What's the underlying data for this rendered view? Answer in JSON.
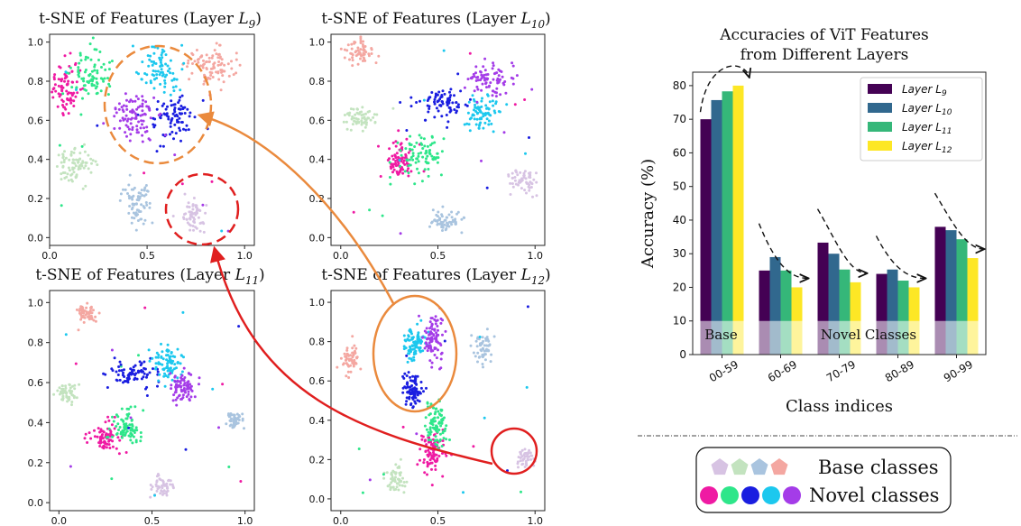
{
  "chart_data": [
    {
      "type": "scatter",
      "panel": "layer9",
      "title": "t-SNE of Features (Layer L9)",
      "title_text": "t-SNE of Features (Layer ",
      "title_var": "L",
      "title_sub": "9",
      "title_close": ")",
      "xlim": [
        0,
        1.05
      ],
      "ylim": [
        -0.04,
        1.04
      ],
      "xticks": [
        "0.0",
        "0.5",
        "1.0"
      ],
      "yticks": [
        "0.0",
        "0.2",
        "0.4",
        "0.6",
        "0.8",
        "1.0"
      ],
      "clusters": [
        {
          "cls": "base1",
          "x": 0.82,
          "y": 0.88,
          "spread": [
            0.06,
            0.05
          ],
          "n": 90
        },
        {
          "cls": "base2",
          "x": 0.13,
          "y": 0.37,
          "spread": [
            0.05,
            0.05
          ],
          "n": 80
        },
        {
          "cls": "base3",
          "x": 0.45,
          "y": 0.18,
          "spread": [
            0.035,
            0.06
          ],
          "n": 70
        },
        {
          "cls": "base4",
          "x": 0.74,
          "y": 0.11,
          "spread": [
            0.035,
            0.04
          ],
          "n": 60
        },
        {
          "cls": "novel1",
          "x": 0.08,
          "y": 0.76,
          "spread": [
            0.04,
            0.08
          ],
          "n": 80
        },
        {
          "cls": "novel2",
          "x": 0.2,
          "y": 0.83,
          "spread": [
            0.06,
            0.06
          ],
          "n": 80
        },
        {
          "cls": "novel3",
          "x": 0.63,
          "y": 0.61,
          "spread": [
            0.06,
            0.06
          ],
          "n": 80
        },
        {
          "cls": "novel4",
          "x": 0.57,
          "y": 0.85,
          "spread": [
            0.05,
            0.06
          ],
          "n": 80
        },
        {
          "cls": "novel5",
          "x": 0.44,
          "y": 0.62,
          "spread": [
            0.06,
            0.06
          ],
          "n": 90
        }
      ]
    },
    {
      "type": "scatter",
      "panel": "layer10",
      "title": "t-SNE of Features (Layer L10)",
      "title_text": "t-SNE of Features (Layer ",
      "title_var": "L",
      "title_sub": "10",
      "title_close": ")",
      "xlim": [
        -0.05,
        1.05
      ],
      "ylim": [
        -0.04,
        1.04
      ],
      "xticks": [
        "0.0",
        "0.5",
        "1.0"
      ],
      "yticks": [
        "0.0",
        "0.2",
        "0.4",
        "0.6",
        "0.8",
        "1.0"
      ],
      "clusters": [
        {
          "cls": "base1",
          "x": 0.09,
          "y": 0.95,
          "spread": [
            0.04,
            0.035
          ],
          "n": 60
        },
        {
          "cls": "base2",
          "x": 0.1,
          "y": 0.61,
          "spread": [
            0.05,
            0.03
          ],
          "n": 60
        },
        {
          "cls": "base3",
          "x": 0.55,
          "y": 0.08,
          "spread": [
            0.05,
            0.03
          ],
          "n": 60
        },
        {
          "cls": "base4",
          "x": 0.94,
          "y": 0.29,
          "spread": [
            0.04,
            0.03
          ],
          "n": 60
        },
        {
          "cls": "novel1",
          "x": 0.3,
          "y": 0.4,
          "spread": [
            0.04,
            0.05
          ],
          "n": 80
        },
        {
          "cls": "novel2",
          "x": 0.41,
          "y": 0.41,
          "spread": [
            0.06,
            0.05
          ],
          "n": 80
        },
        {
          "cls": "novel3",
          "x": 0.52,
          "y": 0.68,
          "spread": [
            0.06,
            0.04
          ],
          "n": 80
        },
        {
          "cls": "novel4",
          "x": 0.72,
          "y": 0.63,
          "spread": [
            0.05,
            0.05
          ],
          "n": 80
        },
        {
          "cls": "novel5",
          "x": 0.77,
          "y": 0.81,
          "spread": [
            0.06,
            0.04
          ],
          "n": 80
        }
      ]
    },
    {
      "type": "scatter",
      "panel": "layer11",
      "title": "t-SNE of Features (Layer L11)",
      "title_text": "t-SNE of Features (Layer ",
      "title_var": "L",
      "title_sub": "11",
      "title_close": ")",
      "xlim": [
        -0.05,
        1.05
      ],
      "ylim": [
        -0.04,
        1.06
      ],
      "xticks": [
        "0.0",
        "0.5",
        "1.0"
      ],
      "yticks": [
        "0.0",
        "0.2",
        "0.4",
        "0.6",
        "0.8",
        "1.0"
      ],
      "clusters": [
        {
          "cls": "base1",
          "x": 0.15,
          "y": 0.95,
          "spread": [
            0.03,
            0.025
          ],
          "n": 55
        },
        {
          "cls": "base2",
          "x": 0.04,
          "y": 0.55,
          "spread": [
            0.03,
            0.025
          ],
          "n": 55
        },
        {
          "cls": "base3",
          "x": 0.94,
          "y": 0.42,
          "spread": [
            0.025,
            0.025
          ],
          "n": 50
        },
        {
          "cls": "base4",
          "x": 0.56,
          "y": 0.08,
          "spread": [
            0.03,
            0.03
          ],
          "n": 50
        },
        {
          "cls": "novel1",
          "x": 0.24,
          "y": 0.33,
          "spread": [
            0.04,
            0.04
          ],
          "n": 80
        },
        {
          "cls": "novel2",
          "x": 0.36,
          "y": 0.38,
          "spread": [
            0.04,
            0.04
          ],
          "n": 80
        },
        {
          "cls": "novel3",
          "x": 0.42,
          "y": 0.64,
          "spread": [
            0.07,
            0.03
          ],
          "n": 80
        },
        {
          "cls": "novel4",
          "x": 0.58,
          "y": 0.7,
          "spread": [
            0.04,
            0.04
          ],
          "n": 80
        },
        {
          "cls": "novel5",
          "x": 0.66,
          "y": 0.58,
          "spread": [
            0.04,
            0.04
          ],
          "n": 80
        }
      ]
    },
    {
      "type": "scatter",
      "panel": "layer12",
      "title": "t-SNE of Features (Layer L12)",
      "title_text": "t-SNE of Features (Layer ",
      "title_var": "L",
      "title_sub": "12",
      "title_close": ")",
      "xlim": [
        -0.05,
        1.05
      ],
      "ylim": [
        -0.06,
        1.06
      ],
      "xticks": [
        "0.0",
        "0.5",
        "1.0"
      ],
      "yticks": [
        "0.0",
        "0.2",
        "0.4",
        "0.6",
        "0.8",
        "1.0"
      ],
      "clusters": [
        {
          "cls": "base1",
          "x": 0.05,
          "y": 0.71,
          "spread": [
            0.025,
            0.04
          ],
          "n": 55
        },
        {
          "cls": "base2",
          "x": 0.28,
          "y": 0.1,
          "spread": [
            0.025,
            0.04
          ],
          "n": 55
        },
        {
          "cls": "base3",
          "x": 0.73,
          "y": 0.77,
          "spread": [
            0.025,
            0.05
          ],
          "n": 55
        },
        {
          "cls": "base4",
          "x": 0.95,
          "y": 0.21,
          "spread": [
            0.02,
            0.025
          ],
          "n": 45
        },
        {
          "cls": "novel1",
          "x": 0.47,
          "y": 0.24,
          "spread": [
            0.03,
            0.05
          ],
          "n": 90
        },
        {
          "cls": "novel2",
          "x": 0.49,
          "y": 0.38,
          "spread": [
            0.025,
            0.06
          ],
          "n": 90
        },
        {
          "cls": "novel3",
          "x": 0.37,
          "y": 0.56,
          "spread": [
            0.025,
            0.05
          ],
          "n": 90
        },
        {
          "cls": "novel4",
          "x": 0.38,
          "y": 0.79,
          "spread": [
            0.03,
            0.05
          ],
          "n": 90
        },
        {
          "cls": "novel5",
          "x": 0.48,
          "y": 0.82,
          "spread": [
            0.025,
            0.06
          ],
          "n": 90
        }
      ]
    },
    {
      "type": "bar",
      "panel": "accuracy",
      "title": "Accuracies of ViT Features\nfrom Different Layers",
      "title_lines": [
        "Accuracies of ViT Features",
        "from Different Layers"
      ],
      "xlabel": "Class indices",
      "ylabel": "Accuracy (%)",
      "ylim": [
        0,
        84
      ],
      "yticks": [
        0,
        10,
        20,
        30,
        40,
        50,
        60,
        70,
        80
      ],
      "categories": [
        "00-59",
        "60-69",
        "70-79",
        "80-89",
        "90-99"
      ],
      "series": [
        {
          "name": "Layer L9",
          "label_var": "Layer L",
          "label_sub": "9",
          "color": "#440154",
          "values": [
            70,
            25,
            33.3,
            24,
            38
          ]
        },
        {
          "name": "Layer L10",
          "label_var": "Layer L",
          "label_sub": "10",
          "color": "#31688e",
          "values": [
            75.7,
            29,
            30,
            25.3,
            37
          ]
        },
        {
          "name": "Layer L11",
          "label_var": "Layer L",
          "label_sub": "11",
          "color": "#35b779",
          "values": [
            78.3,
            25,
            25.3,
            22,
            34.3
          ]
        },
        {
          "name": "Layer L12",
          "label_var": "Layer L",
          "label_sub": "12",
          "color": "#fde725",
          "values": [
            80,
            20,
            21.5,
            20,
            28.7
          ]
        }
      ],
      "legend_position": "top-right",
      "region_labels": {
        "base": "Base",
        "novel": "Novel Classes"
      },
      "shade_top": 10
    }
  ],
  "class_colors": {
    "base1": "#f4a7a1",
    "base2": "#c3e3bf",
    "base3": "#a9c4df",
    "base4": "#d7c3e3",
    "novel1": "#ef1aa3",
    "novel2": "#2ee68a",
    "novel3": "#1a1ee0",
    "novel4": "#1cc8ee",
    "novel5": "#a43ce8"
  },
  "annotation_colors": {
    "orange": "#ea8a3d",
    "red": "#e01f1f"
  },
  "legend": {
    "base_label": "Base classes",
    "novel_label": "Novel classes",
    "base_colors": [
      "#d7c3e3",
      "#c3e3bf",
      "#a9c4df",
      "#f4a7a1"
    ],
    "novel_colors": [
      "#ef1aa3",
      "#2ee68a",
      "#1a1ee0",
      "#1cc8ee",
      "#a43ce8"
    ]
  }
}
